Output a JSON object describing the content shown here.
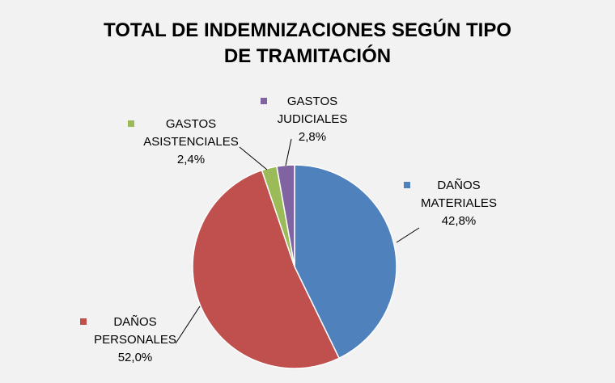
{
  "chart_data": {
    "type": "pie",
    "title_lines": [
      "TOTAL DE INDEMNIZACIONES SEGÚN TIPO",
      "DE TRAMITACIÓN"
    ],
    "legend": "labels-with-markers",
    "slices": [
      {
        "key": "danos-materiales",
        "label_lines": [
          "DAÑOS",
          "MATERIALES"
        ],
        "value": 42.8,
        "value_label": "42,8%",
        "color": "#4f81bd"
      },
      {
        "key": "danos-personales",
        "label_lines": [
          "DAÑOS",
          "PERSONALES"
        ],
        "value": 52.0,
        "value_label": "52,0%",
        "color": "#c0504d"
      },
      {
        "key": "gastos-asistenciales",
        "label_lines": [
          "GASTOS",
          "ASISTENCIALES"
        ],
        "value": 2.4,
        "value_label": "2,4%",
        "color": "#9bbb59"
      },
      {
        "key": "gastos-judiciales",
        "label_lines": [
          "GASTOS",
          "JUDICIALES"
        ],
        "value": 2.8,
        "value_label": "2,8%",
        "color": "#8064a2"
      }
    ]
  }
}
